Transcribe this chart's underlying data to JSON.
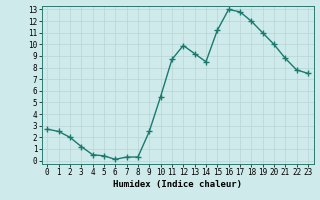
{
  "xlabel": "Humidex (Indice chaleur)",
  "x": [
    0,
    1,
    2,
    3,
    4,
    5,
    6,
    7,
    8,
    9,
    10,
    11,
    12,
    13,
    14,
    15,
    16,
    17,
    18,
    19,
    20,
    21,
    22,
    23
  ],
  "y": [
    2.7,
    2.5,
    2.0,
    1.2,
    0.5,
    0.4,
    0.1,
    0.3,
    0.3,
    2.5,
    5.5,
    8.7,
    9.9,
    9.2,
    8.5,
    11.2,
    13.0,
    12.8,
    12.0,
    11.0,
    10.0,
    8.8,
    7.8,
    7.5
  ],
  "line_color": "#1a7a6e",
  "marker": "+",
  "marker_size": 4,
  "marker_linewidth": 1.0,
  "background_color": "#ceeaea",
  "grid_color": "#b8d4d4",
  "ylim": [
    -0.3,
    13.3
  ],
  "xlim": [
    -0.5,
    23.5
  ],
  "yticks": [
    0,
    1,
    2,
    3,
    4,
    5,
    6,
    7,
    8,
    9,
    10,
    11,
    12,
    13
  ],
  "xticks": [
    0,
    1,
    2,
    3,
    4,
    5,
    6,
    7,
    8,
    9,
    10,
    11,
    12,
    13,
    14,
    15,
    16,
    17,
    18,
    19,
    20,
    21,
    22,
    23
  ],
  "tick_fontsize": 5.5,
  "label_fontsize": 6.5,
  "linewidth": 1.0
}
